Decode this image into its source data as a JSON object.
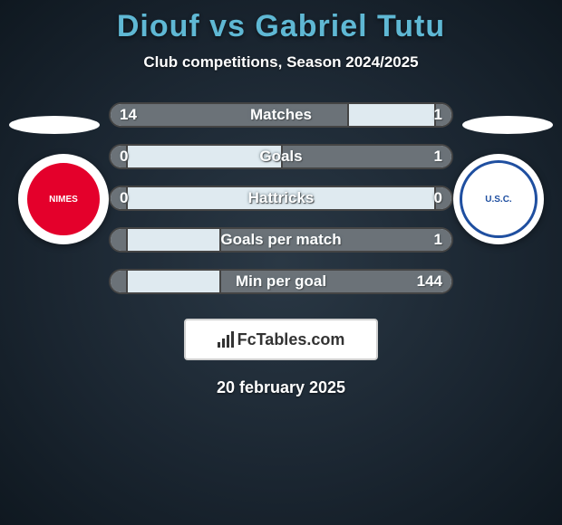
{
  "title": "Diouf vs Gabriel Tutu",
  "subtitle": "Club competitions, Season 2024/2025",
  "date": "20 february 2025",
  "logo_text": "FcTables.com",
  "colors": {
    "title": "#5fb8d4",
    "bar_bg": "#dfeaf0",
    "bar_fill": "#6b7278",
    "text": "#ffffff"
  },
  "left_team": {
    "name": "Nîmes Olympique",
    "badge_bg": "#e4002b",
    "badge_text": "#ffffff",
    "short": "NIMES"
  },
  "right_team": {
    "name": "US Concarneau",
    "badge_bg": "#ffffff",
    "badge_text": "#1f4fa0",
    "short": "U.S.C."
  },
  "stats": [
    {
      "label": "Matches",
      "left_val": "14",
      "right_val": "1",
      "left_pct": 70,
      "right_pct": 5
    },
    {
      "label": "Goals",
      "left_val": "0",
      "right_val": "1",
      "left_pct": 5,
      "right_pct": 50
    },
    {
      "label": "Hattricks",
      "left_val": "0",
      "right_val": "0",
      "left_pct": 5,
      "right_pct": 5
    },
    {
      "label": "Goals per match",
      "left_val": "",
      "right_val": "1",
      "left_pct": 5,
      "right_pct": 68
    },
    {
      "label": "Min per goal",
      "left_val": "",
      "right_val": "144",
      "left_pct": 5,
      "right_pct": 68
    }
  ]
}
